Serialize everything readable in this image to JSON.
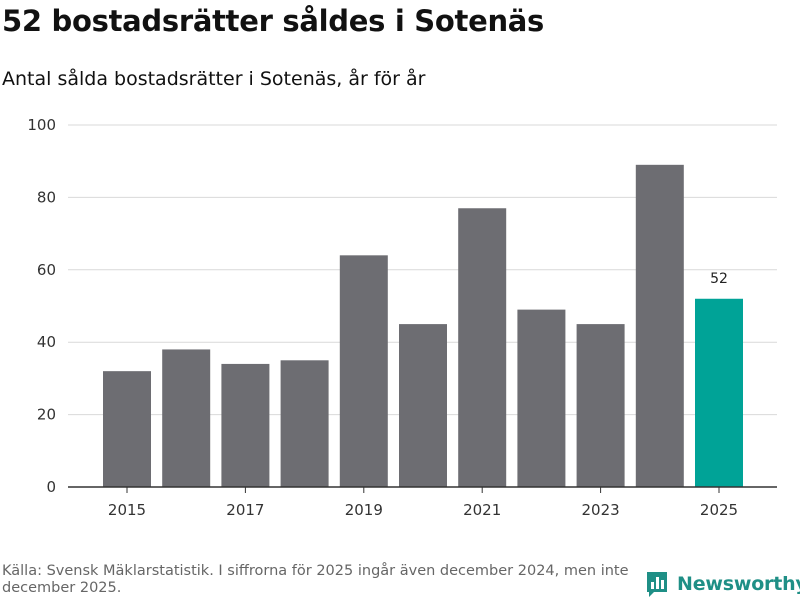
{
  "header": {
    "title": "52 bostadsrätter såldes i Sotenäs",
    "subtitle": "Antal sålda bostadsrätter i Sotenäs, år för år"
  },
  "footer": {
    "source": "Källa: Svensk Mäklarstatistik. I siffrorna för 2025 ingår även december 2024, men inte december 2025.",
    "brand": "Newsworthy",
    "brand_icon": "bar-chart-logo-icon"
  },
  "colors": {
    "bar": "#6d6d72",
    "highlight": "#00a397",
    "grid": "#d9d9d9",
    "axis": "#333333",
    "brand": "#1f8f86"
  },
  "chart_data": {
    "type": "bar",
    "categories": [
      "2015",
      "2016",
      "2017",
      "2018",
      "2019",
      "2020",
      "2021",
      "2022",
      "2023",
      "2024",
      "2025"
    ],
    "values": [
      32,
      38,
      34,
      35,
      64,
      45,
      77,
      49,
      45,
      89,
      52
    ],
    "x_tick_labels": [
      "2015",
      "2017",
      "2019",
      "2021",
      "2023",
      "2025"
    ],
    "y_ticks": [
      0,
      20,
      40,
      60,
      80,
      100
    ],
    "ylim": [
      0,
      100
    ],
    "highlight_category": "2025",
    "data_labels": [
      {
        "category": "2025",
        "label": "52"
      }
    ],
    "title": "52 bostadsrätter såldes i Sotenäs",
    "subtitle": "Antal sålda bostadsrätter i Sotenäs, år för år",
    "xlabel": "",
    "ylabel": "",
    "grid": true,
    "legend": "none"
  }
}
